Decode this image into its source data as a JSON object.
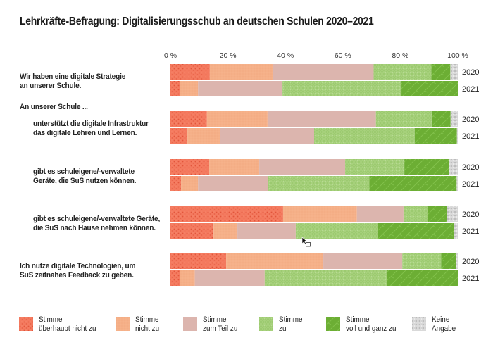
{
  "chart_data": {
    "type": "bar",
    "orientation": "horizontal",
    "stacked": "100%",
    "title": "Lehrkräfte-Befragung: Digitalisierungsschub an deutschen Schulen  2020–2021",
    "xlabel": "",
    "ylabel": "",
    "xlim": [
      0,
      100
    ],
    "x_ticks": [
      "0 %",
      "20 %",
      "40 %",
      "60 %",
      "80 %",
      "100 %"
    ],
    "legend_position": "bottom",
    "section_heading": "An unserer Schule ...",
    "legend": [
      {
        "label": "Stimme\nüberhaupt nicht zu",
        "color": "#f07257",
        "pattern": "dots"
      },
      {
        "label": "Stimme\nnicht zu",
        "color": "#f4ae84",
        "pattern": "fine"
      },
      {
        "label": "Stimme\nzum Teil zu",
        "color": "#dcb4ae",
        "pattern": "none"
      },
      {
        "label": "Stimme\nzu",
        "color": "#a4d07a",
        "pattern": "cross"
      },
      {
        "label": "Stimme\nvoll und ganz zu",
        "color": "#6caf34",
        "pattern": "brick"
      },
      {
        "label": "Keine\nAngabe",
        "color": "#c8c8c8",
        "pattern": "speckle"
      }
    ],
    "questions": [
      {
        "label": "Wir haben eine digitale Strategie\nan unserer Schule.",
        "indent": false,
        "series": [
          {
            "year": "2020",
            "values": [
              13.7,
              22.0,
              35.0,
              20.1,
              6.6,
              2.6
            ]
          },
          {
            "year": "2021",
            "values": [
              3.2,
              6.4,
              29.4,
              41.4,
              19.6,
              0.0
            ]
          }
        ]
      },
      {
        "label": "unterstützt die digitale Infrastruktur\ndas digitale Lehren und Lernen.",
        "indent": true,
        "series": [
          {
            "year": "2020",
            "values": [
              12.7,
              21.1,
              37.7,
              19.4,
              6.6,
              2.5
            ]
          },
          {
            "year": "2021",
            "values": [
              5.9,
              11.3,
              32.8,
              35.0,
              14.7,
              0.3
            ]
          }
        ]
      },
      {
        "label": "gibt es schuleigene/-verwaltete\nGeräte, die SuS nutzen können.",
        "indent": true,
        "series": [
          {
            "year": "2020",
            "values": [
              13.5,
              17.4,
              29.9,
              20.6,
              15.7,
              2.9
            ]
          },
          {
            "year": "2021",
            "values": [
              3.7,
              5.9,
              24.3,
              35.3,
              30.4,
              0.4
            ]
          }
        ]
      },
      {
        "label": "gibt es schuleigene/-verwaltete Geräte,\ndie SuS nach Hause nehmen können.",
        "indent": true,
        "series": [
          {
            "year": "2020",
            "values": [
              39.2,
              25.7,
              16.2,
              8.6,
              6.6,
              3.7
            ]
          },
          {
            "year": "2021",
            "values": [
              15.0,
              8.3,
              20.3,
              28.7,
              26.5,
              1.2
            ]
          }
        ]
      },
      {
        "label": "Ich nutze digitale Technologien, um\nSuS zeitnahes Feedback zu geben.",
        "indent": false,
        "series": [
          {
            "year": "2020",
            "values": [
              19.4,
              33.8,
              27.5,
              13.5,
              5.1,
              0.7
            ]
          },
          {
            "year": "2021",
            "values": [
              3.4,
              5.1,
              24.3,
              42.6,
              24.6,
              0.0
            ]
          }
        ]
      }
    ]
  }
}
